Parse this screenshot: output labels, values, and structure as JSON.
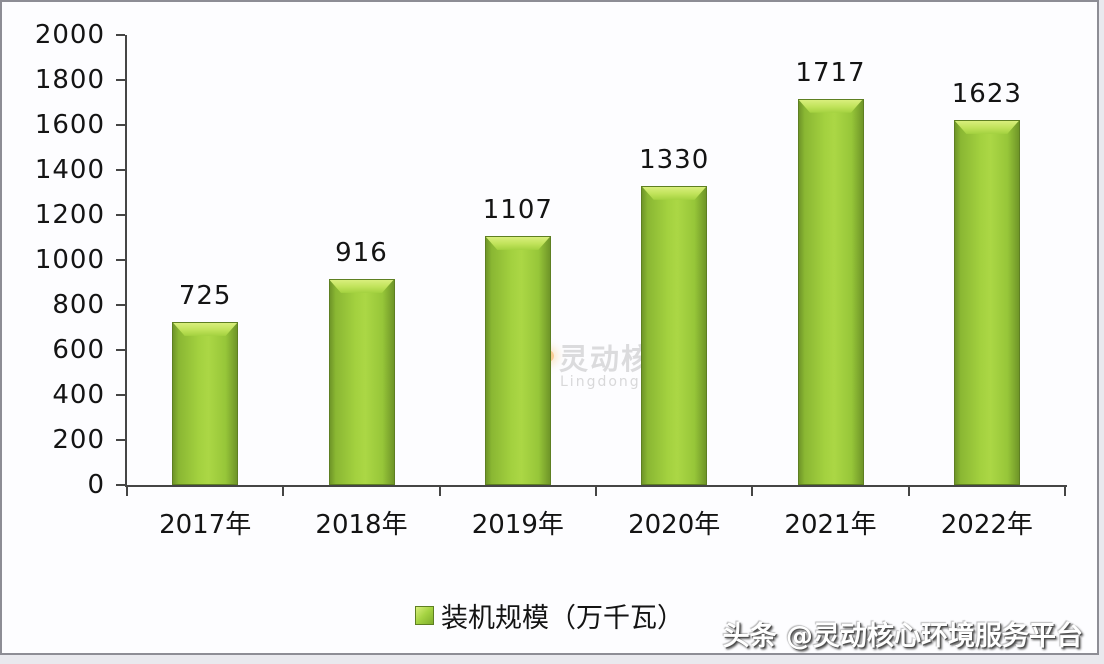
{
  "chart_data": {
    "type": "bar",
    "title": "",
    "categories": [
      "2017年",
      "2018年",
      "2019年",
      "2020年",
      "2021年",
      "2022年"
    ],
    "values": [
      725,
      916,
      1107,
      1330,
      1717,
      1623
    ],
    "series_name": "装机规模（万千瓦）",
    "xlabel": "",
    "ylabel": "",
    "ylim": [
      0,
      2000
    ],
    "yticks": [
      0,
      200,
      400,
      600,
      800,
      1000,
      1200,
      1400,
      1600,
      1800,
      2000
    ],
    "grid": false,
    "legend_position": "bottom",
    "bar_color": "#9ACB3E",
    "bar_edge_color": "#5E7F22",
    "axis_color": "#454545",
    "label_color": "#141414"
  },
  "legend": {
    "label": "装机规模（万千瓦）",
    "marker_color": "#9ACB3E"
  },
  "watermark": {
    "text": "灵动核心",
    "subtext": "Lingdong Core",
    "logo_color": "#F59B28"
  },
  "attribution": {
    "text": "头条 @灵动核心环境服务平台"
  },
  "frame": {
    "border_color": "#8D8D95",
    "background": "#FDFDFF"
  }
}
